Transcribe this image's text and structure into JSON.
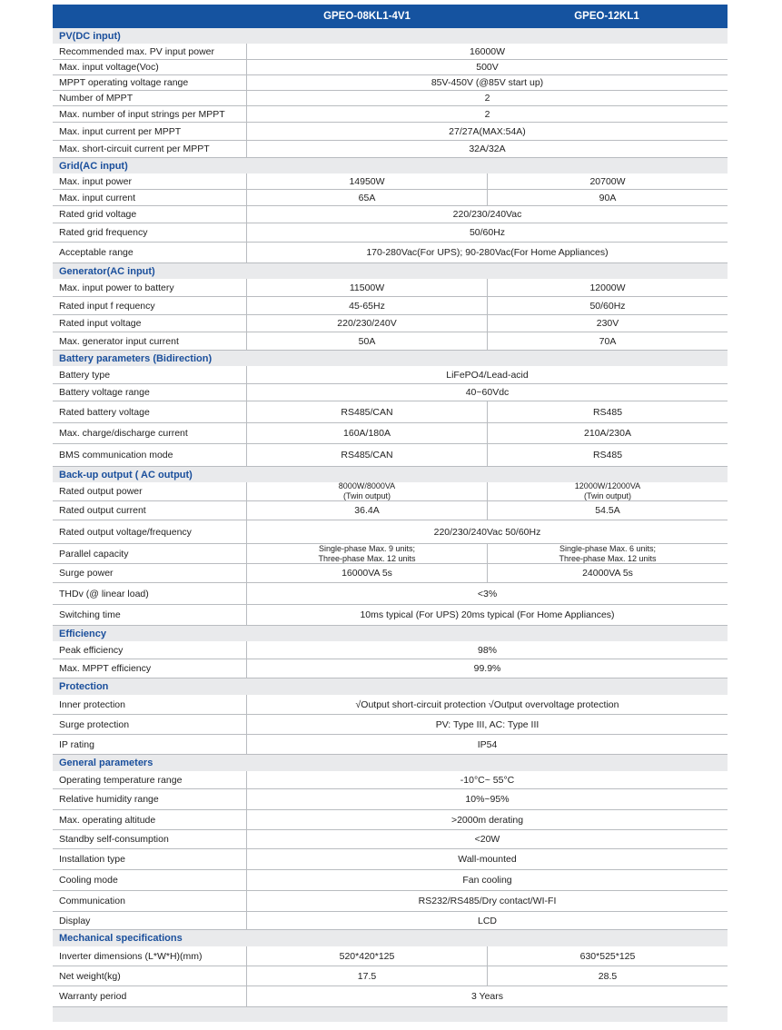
{
  "header": {
    "models": [
      "GPEO-08KL1-4V1",
      "GPEO-12KL1"
    ]
  },
  "sections": [
    {
      "title": "PV(DC input)",
      "rows": [
        {
          "label": "Recommended max. PV input power",
          "values": [
            "16000W"
          ]
        },
        {
          "label": "Max. input voltage(Voc)",
          "values": [
            "500V"
          ]
        },
        {
          "label": "MPPT operating voltage range",
          "values": [
            "85V-450V (@85V start up)"
          ]
        },
        {
          "label": "Number of MPPT",
          "values": [
            "2"
          ]
        },
        {
          "label": "Max. number of input strings per MPPT",
          "values": [
            "2"
          ]
        },
        {
          "label": "Max. input current per MPPT",
          "values": [
            "27/27A(MAX:54A)"
          ]
        },
        {
          "label": "Max. short-circuit current per MPPT",
          "values": [
            "32A/32A"
          ]
        }
      ]
    },
    {
      "title": "Grid(AC input)",
      "rows": [
        {
          "label": "Max. input power",
          "values": [
            "14950W",
            "20700W"
          ]
        },
        {
          "label": "Max. input current",
          "values": [
            "65A",
            "90A"
          ]
        },
        {
          "label": "Rated grid voltage",
          "values": [
            "220/230/240Vac"
          ]
        },
        {
          "label": "Rated grid frequency",
          "values": [
            "50/60Hz"
          ]
        },
        {
          "label": "Acceptable range",
          "values": [
            "170-280Vac(For UPS);  90-280Vac(For Home Appliances)"
          ]
        }
      ]
    },
    {
      "title": "Generator(AC input)",
      "rows": [
        {
          "label": "Max. input power to battery",
          "values": [
            "11500W",
            "12000W"
          ]
        },
        {
          "label": "Rated input f requency",
          "values": [
            "45-65Hz",
            "50/60Hz"
          ]
        },
        {
          "label": "Rated input voltage",
          "values": [
            "220/230/240V",
            "230V"
          ]
        },
        {
          "label": "Max. generator input current",
          "values": [
            "50A",
            "70A"
          ]
        }
      ]
    },
    {
      "title": "Battery parameters (Bidirection)",
      "rows": [
        {
          "label": "Battery type",
          "values": [
            "LiFePO4/Lead-acid"
          ]
        },
        {
          "label": "Battery voltage range",
          "values": [
            "40~60Vdc"
          ]
        },
        {
          "label": "Rated battery voltage",
          "values": [
            "RS485/CAN",
            "RS485"
          ]
        },
        {
          "label": "Max. charge/discharge current",
          "values": [
            "160A/180A",
            "210A/230A"
          ]
        },
        {
          "label": "BMS communication mode",
          "values": [
            "RS485/CAN",
            "RS485"
          ]
        }
      ]
    },
    {
      "title": "Back-up output ( AC output)",
      "rows": [
        {
          "label": "Rated output power",
          "values": [
            "8000W/8000VA\n(Twin output)",
            "12000W/12000VA\n(Twin output)"
          ],
          "small": true
        },
        {
          "label": "Rated output current",
          "values": [
            "36.4A",
            "54.5A"
          ]
        },
        {
          "label": "Rated output voltage/frequency",
          "values": [
            "220/230/240Vac 50/60Hz"
          ]
        },
        {
          "label": "Parallel capacity",
          "values": [
            "Single-phase Max. 9 units;\nThree-phase Max. 12 units",
            "Single-phase Max. 6 units;\nThree-phase Max. 12 units"
          ],
          "small": true
        },
        {
          "label": "Surge power",
          "values": [
            "16000VA 5s",
            "24000VA 5s"
          ]
        },
        {
          "label": "THDv (@ linear load)",
          "values": [
            "<3%"
          ]
        },
        {
          "label": "Switching time",
          "values": [
            "10ms typical (For UPS) 20ms typical (For Home Appliances)"
          ]
        }
      ]
    },
    {
      "title": "Efficiency",
      "rows": [
        {
          "label": "Peak efficiency",
          "values": [
            "98%"
          ]
        },
        {
          "label": "Max. MPPT efficiency",
          "values": [
            "99.9%"
          ]
        }
      ]
    },
    {
      "title": "Protection",
      "rows": [
        {
          "label": "Inner protection",
          "values": [
            "√Output short-circuit protection  √Output overvoltage protection"
          ]
        },
        {
          "label": "Surge protection",
          "values": [
            "PV: Type III, AC: Type III"
          ]
        },
        {
          "label": "IP rating",
          "values": [
            "IP54"
          ]
        }
      ]
    },
    {
      "title": "General parameters",
      "rows": [
        {
          "label": "Operating temperature range",
          "values": [
            "-10°C~ 55°C"
          ]
        },
        {
          "label": "Relative humidity range",
          "values": [
            "10%~95%"
          ]
        },
        {
          "label": "Max. operating altitude",
          "values": [
            ">2000m derating"
          ]
        },
        {
          "label": "Standby self-consumption",
          "values": [
            "<20W"
          ]
        },
        {
          "label": "Installation type",
          "values": [
            "Wall-mounted"
          ]
        },
        {
          "label": "Cooling mode",
          "values": [
            "Fan cooling"
          ]
        },
        {
          "label": "Communication",
          "values": [
            "RS232/RS485/Dry contact/WI-FI"
          ]
        },
        {
          "label": "Display",
          "values": [
            "LCD"
          ]
        }
      ]
    },
    {
      "title": "Mechanical specifications",
      "rows": [
        {
          "label": "Inverter dimensions (L*W*H)(mm)",
          "values": [
            "520*420*125",
            "630*525*125"
          ]
        },
        {
          "label": "Net weight(kg)",
          "values": [
            "17.5",
            "28.5"
          ]
        },
        {
          "label": "Warranty period",
          "values": [
            "3 Years"
          ]
        }
      ]
    }
  ]
}
